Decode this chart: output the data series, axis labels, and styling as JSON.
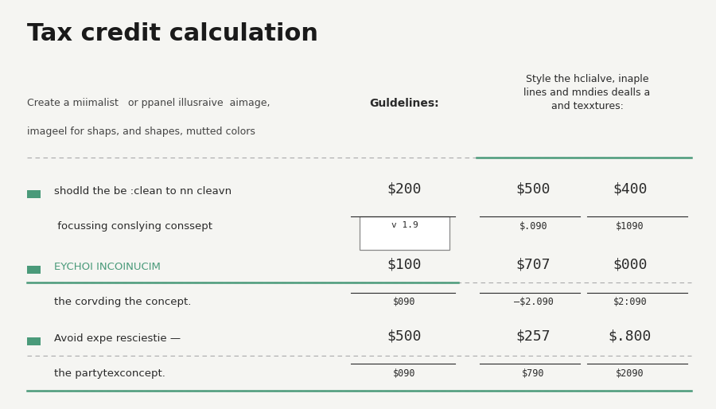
{
  "title": "Tax credit calculation",
  "subtitle_line1": "Create a miimalist   or ppanel illusraive  aimage,",
  "subtitle_line2": "imageel for shaps, and shapes, mutted colors",
  "col_header_left": "Guldelines:",
  "col_header_right": "Style the hclialve, inaple\nlines and mndies dealls a\nand texxtures:",
  "background_color": "#f5f5f2",
  "title_color": "#1a1a1a",
  "text_color": "#2a2a2a",
  "subtitle_color": "#444444",
  "green_color": "#4a9a7a",
  "rows": [
    {
      "label_line1": "shodld the be :clean to nn cleavn",
      "label_line2": " focussing conslying conssept",
      "label1_color": "#2a2a2a",
      "label2_color": "#2a2a2a",
      "val1": "$200",
      "val1_sub": "v 1.9",
      "val1_box": true,
      "val2": "$500",
      "val2_sub": "$.090",
      "val3": "$400",
      "val3_sub": "$1090"
    },
    {
      "label_line1": "EYCHOI INCOINUCIM",
      "label_line2": "the corvding the concept.",
      "label1_color": "#4a9a7a",
      "label2_color": "#2a2a2a",
      "val1": "$100",
      "val1_sub": "$090",
      "val1_box": false,
      "val2": "$707",
      "val2_sub": "—$2.090",
      "val3": "$000",
      "val3_sub": "$2:090"
    },
    {
      "label_line1": "Avoid expe resciestie —",
      "label_line2": "the partytexconcept.",
      "label1_color": "#2a2a2a",
      "label2_color": "#2a2a2a",
      "val1": "$500",
      "val1_sub": "$090",
      "val1_box": false,
      "val2": "$257",
      "val2_sub": "$790",
      "val3": "$.800",
      "val3_sub": "$2090"
    }
  ]
}
